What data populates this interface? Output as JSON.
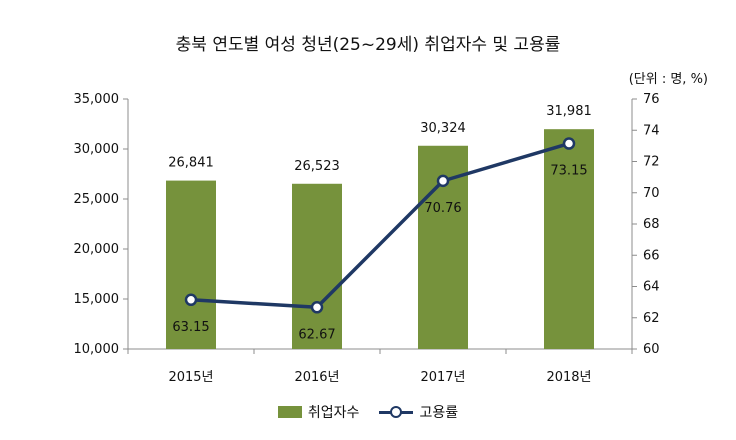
{
  "chart_data": {
    "type": "bar",
    "title": "충북 연도별 여성 청년(25~29세) 취업자수 및 고용률",
    "unit_note": "(단위 : 명, %)",
    "categories": [
      "2015년",
      "2016년",
      "2017년",
      "2018년"
    ],
    "series": [
      {
        "name": "취업자수",
        "type": "bar",
        "axis": "left",
        "color": "#76923c",
        "values": [
          26841,
          26523,
          30324,
          31981
        ],
        "labels": [
          "26,841",
          "26,523",
          "30,324",
          "31,981"
        ]
      },
      {
        "name": "고용률",
        "type": "line",
        "axis": "right",
        "color": "#1f3864",
        "values": [
          63.15,
          62.67,
          70.76,
          73.15
        ],
        "labels": [
          "63.15",
          "62.67",
          "70.76",
          "73.15"
        ]
      }
    ],
    "y_left": {
      "min": 10000,
      "max": 35000,
      "ticks": [
        10000,
        15000,
        20000,
        25000,
        30000,
        35000
      ],
      "tick_labels": [
        "10,000",
        "15,000",
        "20,000",
        "25,000",
        "30,000",
        "35,000"
      ]
    },
    "y_right": {
      "min": 60,
      "max": 76,
      "ticks": [
        60,
        62,
        64,
        66,
        68,
        70,
        72,
        74,
        76
      ],
      "tick_labels": [
        "60",
        "62",
        "64",
        "66",
        "68",
        "70",
        "72",
        "74",
        "76"
      ]
    },
    "grid": false,
    "legend_position": "bottom"
  }
}
